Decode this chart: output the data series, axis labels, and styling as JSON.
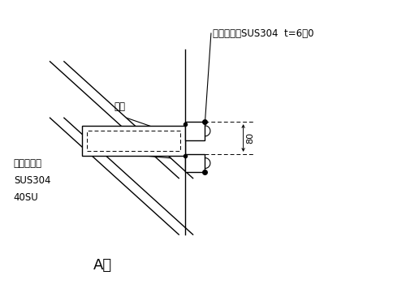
{
  "title": "A部",
  "label_sus304_plate": "ステンレスSUS304  t=6．0",
  "label_welding": "溶接",
  "label_stainless_line1": "ステンレス",
  "label_stainless_line2": "SUS304",
  "label_stainless_line3": "40SU",
  "label_dimension": "80",
  "bg_color": "#ffffff",
  "line_color": "#000000",
  "font_size_title": 13,
  "font_size_label": 8.5,
  "font_size_dim": 8,
  "xlim": [
    0,
    10
  ],
  "ylim": [
    0,
    7
  ]
}
